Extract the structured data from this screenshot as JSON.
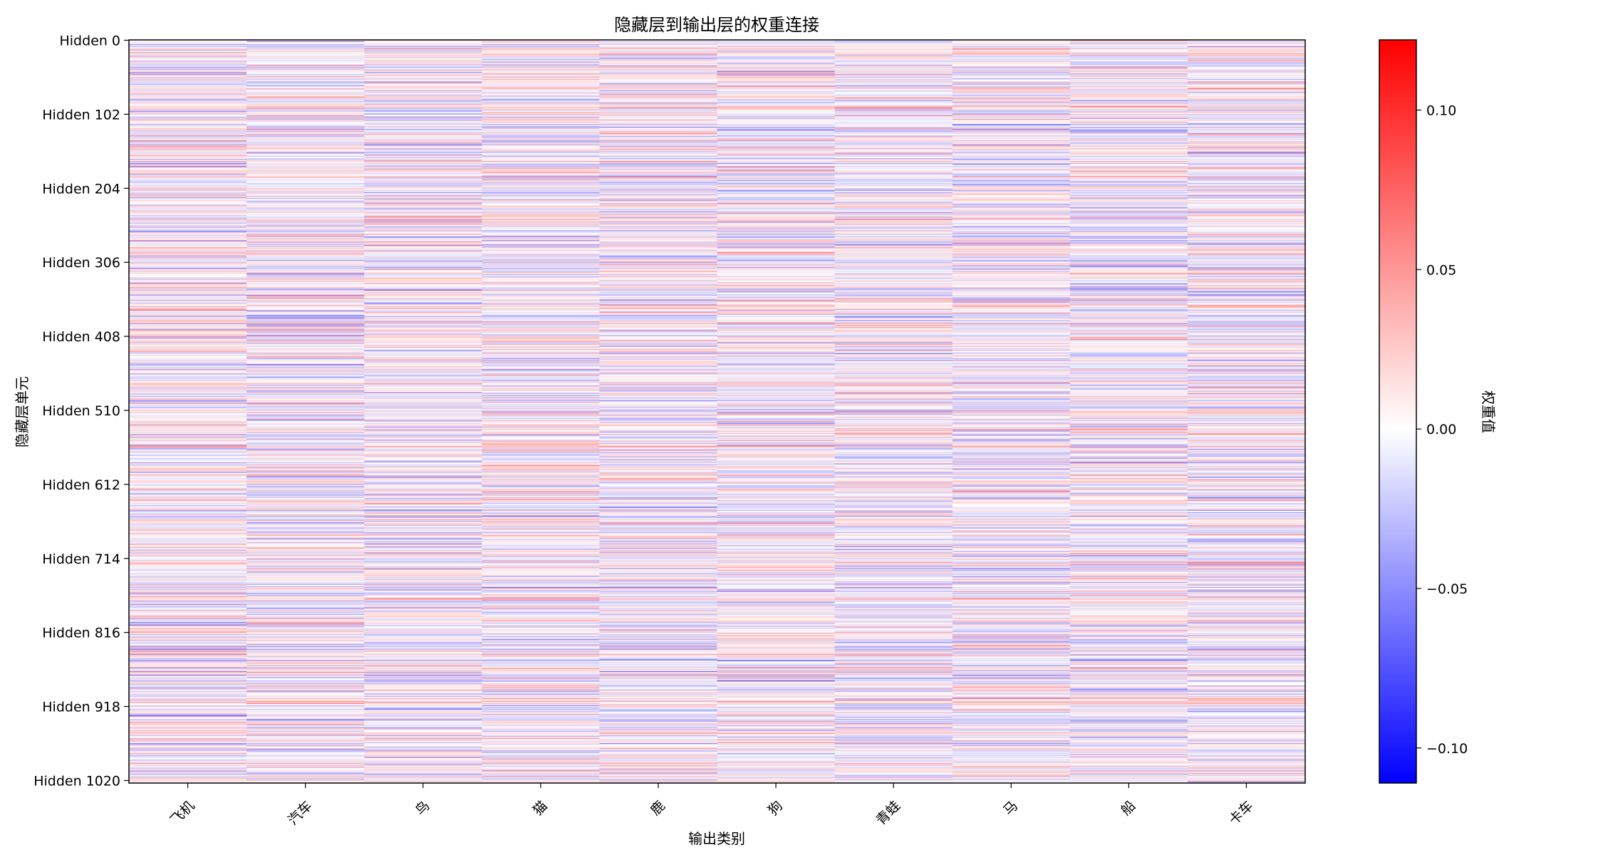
{
  "chart_data": {
    "type": "heatmap",
    "title": "隐藏层到输出层的权重连接",
    "xlabel": "输出类别",
    "ylabel": "隐藏层单元",
    "x_categories": [
      "飞机",
      "汽车",
      "鸟",
      "猫",
      "鹿",
      "狗",
      "青蛙",
      "马",
      "船",
      "卡车"
    ],
    "y_ticks": [
      "Hidden 0",
      "Hidden 102",
      "Hidden 204",
      "Hidden 306",
      "Hidden 408",
      "Hidden 510",
      "Hidden 612",
      "Hidden 714",
      "Hidden 816",
      "Hidden 918",
      "Hidden 1020"
    ],
    "y_tick_values": [
      0,
      102,
      204,
      306,
      408,
      510,
      612,
      714,
      816,
      918,
      1020
    ],
    "n_rows": 1024,
    "n_cols": 10,
    "colormap": "bwr",
    "colormap_colors": {
      "low": "#0000ff",
      "mid": "#ffffff",
      "high": "#ff0000"
    },
    "value_range": [
      -0.111,
      0.122
    ],
    "colorbar": {
      "label": "权重值",
      "ticks": [
        -0.1,
        -0.05,
        0.0,
        0.05,
        0.1
      ],
      "tick_labels": [
        "−0.10",
        "−0.05",
        "0.00",
        "0.05",
        "0.10"
      ]
    },
    "note": "Per-cell weight values are too dense to read individually; values span roughly ±0.12."
  }
}
